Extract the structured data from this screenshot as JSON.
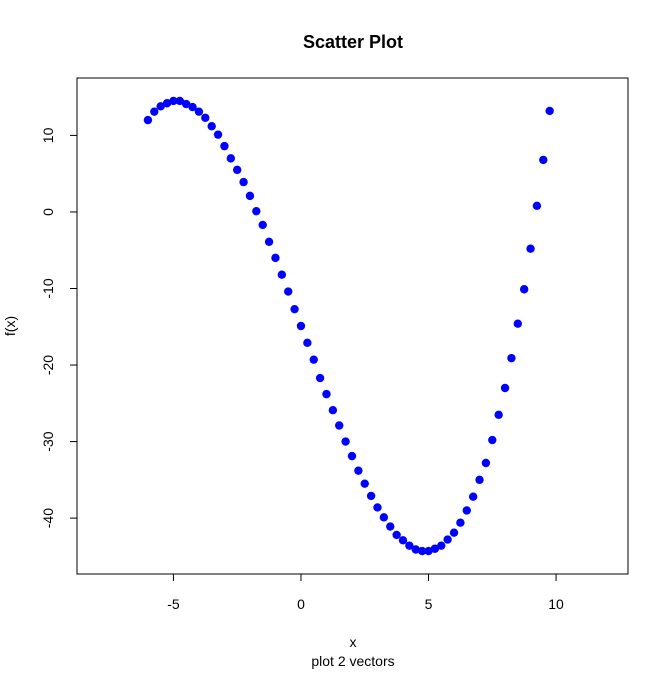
{
  "chart_data": {
    "type": "scatter",
    "title": "Scatter Plot",
    "subtitle": "plot 2 vectors",
    "x_label": "x",
    "y_label": "f(x)",
    "color": "#0000ff",
    "x": [
      -6,
      -5.75,
      -5.5,
      -5.25,
      -5,
      -4.75,
      -4.5,
      -4.25,
      -4,
      -3.75,
      -3.5,
      -3.25,
      -3,
      -2.75,
      -2.5,
      -2.25,
      -2,
      -1.75,
      -1.5,
      -1.25,
      -1,
      -0.75,
      -0.5,
      -0.25,
      0,
      0.25,
      0.5,
      0.75,
      1,
      1.25,
      1.5,
      1.75,
      2,
      2.25,
      2.5,
      2.75,
      3,
      3.25,
      3.5,
      3.75,
      4,
      4.25,
      4.5,
      4.75,
      5,
      5.25,
      5.5,
      5.75,
      6,
      6.25,
      6.5,
      6.75,
      7,
      7.25,
      7.5,
      7.75,
      8,
      8.25,
      8.5,
      8.75,
      9,
      9.25,
      9.5,
      9.75
    ],
    "values": [
      12.0,
      13.1,
      13.8,
      14.2,
      14.5,
      14.5,
      14.1,
      13.7,
      13.1,
      12.3,
      11.2,
      10.1,
      8.6,
      7.0,
      5.5,
      3.9,
      2.1,
      0.1,
      -1.7,
      -3.9,
      -6.0,
      -8.2,
      -10.4,
      -12.7,
      -14.9,
      -17.1,
      -19.3,
      -21.7,
      -23.8,
      -25.9,
      -27.9,
      -30.0,
      -31.9,
      -33.8,
      -35.5,
      -37.1,
      -38.6,
      -39.9,
      -41.1,
      -42.2,
      -42.9,
      -43.6,
      -44.1,
      -44.3,
      -44.3,
      -44.0,
      -43.6,
      -42.8,
      -41.9,
      -40.6,
      -39.0,
      -37.2,
      -35.0,
      -32.8,
      -29.8,
      -26.5,
      -23.0,
      -19.1,
      -14.6,
      -10.1,
      -4.8,
      0.8,
      6.8,
      13.2
    ],
    "xlim": [
      -8.78,
      12.82
    ],
    "ylim": [
      -47.3,
      17.5
    ],
    "xticks": [
      -5,
      0,
      5,
      10
    ],
    "yticks": [
      -40,
      -30,
      -20,
      -10,
      0,
      10
    ]
  }
}
